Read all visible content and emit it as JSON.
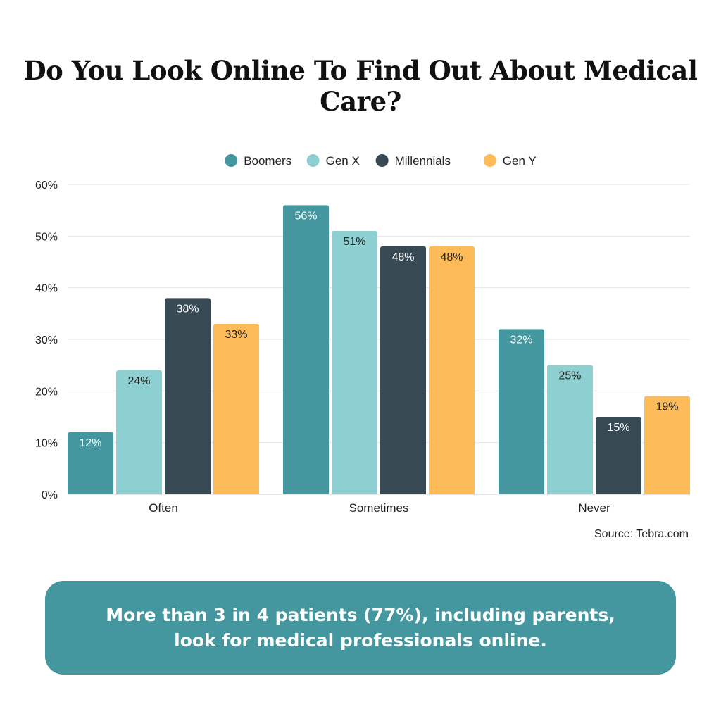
{
  "chart_data": {
    "type": "bar",
    "title": "Do You Look Online To Find Out About Medical Care?",
    "categories": [
      "Often",
      "Sometimes",
      "Never"
    ],
    "series": [
      {
        "name": "Boomers",
        "color": "#44979e",
        "values": [
          12,
          56,
          32
        ]
      },
      {
        "name": "Gen X",
        "color": "#8ecfd1",
        "values": [
          24,
          51,
          25
        ]
      },
      {
        "name": "Millennials",
        "color": "#374a54",
        "values": [
          38,
          48,
          15
        ]
      },
      {
        "name": "Gen Y",
        "color": "#fdbb5a",
        "values": [
          33,
          48,
          19
        ]
      }
    ],
    "ylim": [
      0,
      60
    ],
    "yticks": [
      0,
      10,
      20,
      30,
      40,
      50,
      60
    ],
    "ytick_suffix": "%",
    "value_suffix": "%",
    "legend_position": "top-center",
    "grid": true,
    "source": "Source: Tebra.com"
  },
  "callout": {
    "text": "More than 3 in 4 patients (77%), including parents, look for medical professionals online."
  }
}
